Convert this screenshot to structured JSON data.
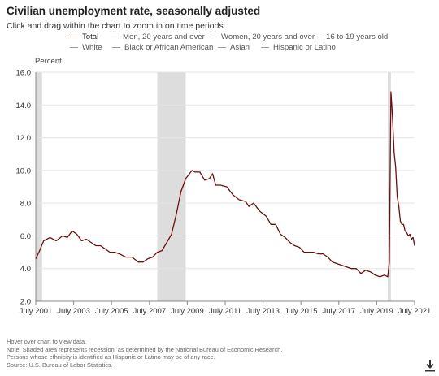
{
  "header": {
    "title": "Civilian unemployment rate, seasonally adjusted",
    "subtitle": "Click and drag within the chart to zoom in on time periods"
  },
  "legend": {
    "items": [
      {
        "label": "Total",
        "color": "#6b0f0f",
        "active": true
      },
      {
        "label": "Men, 20 years and over",
        "color": "#9a9a9a",
        "active": false
      },
      {
        "label": "Women, 20 years and over",
        "color": "#9a9a9a",
        "active": false
      },
      {
        "label": "16 to 19 years old",
        "color": "#9a9a9a",
        "active": false
      },
      {
        "label": "White",
        "color": "#9a9a9a",
        "active": false
      },
      {
        "label": "Black or African American",
        "color": "#9a9a9a",
        "active": false
      },
      {
        "label": "Asian",
        "color": "#9a9a9a",
        "active": false
      },
      {
        "label": "Hispanic or Latino",
        "color": "#9a9a9a",
        "active": false
      }
    ]
  },
  "chart_data": {
    "type": "line",
    "ylabel": "Percent",
    "xlabel": "",
    "ylim": [
      2.0,
      16.0
    ],
    "xlim": [
      "2001-07",
      "2021-07"
    ],
    "yticks": [
      "2.0",
      "4.0",
      "6.0",
      "8.0",
      "10.0",
      "12.0",
      "14.0",
      "16.0"
    ],
    "xticks": [
      {
        "label": "July 2001",
        "date": "2001-07"
      },
      {
        "label": "July 2003",
        "date": "2003-07"
      },
      {
        "label": "July 2005",
        "date": "2005-07"
      },
      {
        "label": "July 2007",
        "date": "2007-07"
      },
      {
        "label": "July 2009",
        "date": "2009-07"
      },
      {
        "label": "July 2011",
        "date": "2011-07"
      },
      {
        "label": "July 2013",
        "date": "2013-07"
      },
      {
        "label": "July 2015",
        "date": "2015-07"
      },
      {
        "label": "July 2017",
        "date": "2017-07"
      },
      {
        "label": "July 2019",
        "date": "2019-07"
      },
      {
        "label": "July 2021",
        "date": "2021-07"
      }
    ],
    "grid": true,
    "recessions": [
      {
        "start": "2001-03",
        "end": "2001-11"
      },
      {
        "start": "2007-12",
        "end": "2009-06"
      },
      {
        "start": "2020-02",
        "end": "2020-04"
      }
    ],
    "recession_color": "#dddddd",
    "series": [
      {
        "name": "Total",
        "color": "#6b0f0f",
        "points": [
          [
            "2001-07",
            4.6
          ],
          [
            "2001-09",
            5.0
          ],
          [
            "2001-12",
            5.7
          ],
          [
            "2002-04",
            5.9
          ],
          [
            "2002-08",
            5.7
          ],
          [
            "2002-12",
            6.0
          ],
          [
            "2003-03",
            5.9
          ],
          [
            "2003-06",
            6.3
          ],
          [
            "2003-09",
            6.1
          ],
          [
            "2003-12",
            5.7
          ],
          [
            "2004-03",
            5.8
          ],
          [
            "2004-06",
            5.6
          ],
          [
            "2004-09",
            5.4
          ],
          [
            "2004-12",
            5.4
          ],
          [
            "2005-03",
            5.2
          ],
          [
            "2005-06",
            5.0
          ],
          [
            "2005-09",
            5.0
          ],
          [
            "2005-12",
            4.9
          ],
          [
            "2006-04",
            4.7
          ],
          [
            "2006-08",
            4.7
          ],
          [
            "2006-12",
            4.4
          ],
          [
            "2007-03",
            4.4
          ],
          [
            "2007-06",
            4.6
          ],
          [
            "2007-09",
            4.7
          ],
          [
            "2007-12",
            5.0
          ],
          [
            "2008-03",
            5.1
          ],
          [
            "2008-06",
            5.6
          ],
          [
            "2008-09",
            6.1
          ],
          [
            "2008-12",
            7.3
          ],
          [
            "2009-03",
            8.7
          ],
          [
            "2009-06",
            9.5
          ],
          [
            "2009-10",
            10.0
          ],
          [
            "2009-12",
            9.9
          ],
          [
            "2010-03",
            9.9
          ],
          [
            "2010-06",
            9.4
          ],
          [
            "2010-09",
            9.5
          ],
          [
            "2010-11",
            9.8
          ],
          [
            "2011-01",
            9.1
          ],
          [
            "2011-04",
            9.1
          ],
          [
            "2011-08",
            9.0
          ],
          [
            "2011-12",
            8.5
          ],
          [
            "2012-04",
            8.2
          ],
          [
            "2012-08",
            8.1
          ],
          [
            "2012-10",
            7.8
          ],
          [
            "2013-01",
            8.0
          ],
          [
            "2013-05",
            7.5
          ],
          [
            "2013-09",
            7.2
          ],
          [
            "2013-12",
            6.7
          ],
          [
            "2014-03",
            6.7
          ],
          [
            "2014-06",
            6.1
          ],
          [
            "2014-09",
            5.9
          ],
          [
            "2014-12",
            5.6
          ],
          [
            "2015-03",
            5.4
          ],
          [
            "2015-06",
            5.3
          ],
          [
            "2015-09",
            5.0
          ],
          [
            "2015-12",
            5.0
          ],
          [
            "2016-03",
            5.0
          ],
          [
            "2016-06",
            4.9
          ],
          [
            "2016-09",
            4.9
          ],
          [
            "2016-12",
            4.7
          ],
          [
            "2017-03",
            4.4
          ],
          [
            "2017-06",
            4.3
          ],
          [
            "2017-09",
            4.2
          ],
          [
            "2017-12",
            4.1
          ],
          [
            "2018-03",
            4.0
          ],
          [
            "2018-06",
            4.0
          ],
          [
            "2018-09",
            3.7
          ],
          [
            "2018-12",
            3.9
          ],
          [
            "2019-03",
            3.8
          ],
          [
            "2019-06",
            3.6
          ],
          [
            "2019-09",
            3.5
          ],
          [
            "2019-12",
            3.6
          ],
          [
            "2020-02",
            3.5
          ],
          [
            "2020-03",
            4.4
          ],
          [
            "2020-04",
            14.8
          ],
          [
            "2020-05",
            13.3
          ],
          [
            "2020-06",
            11.1
          ],
          [
            "2020-07",
            10.2
          ],
          [
            "2020-08",
            8.4
          ],
          [
            "2020-09",
            7.8
          ],
          [
            "2020-10",
            6.9
          ],
          [
            "2020-11",
            6.7
          ],
          [
            "2020-12",
            6.7
          ],
          [
            "2021-01",
            6.3
          ],
          [
            "2021-02",
            6.2
          ],
          [
            "2021-03",
            6.0
          ],
          [
            "2021-04",
            6.1
          ],
          [
            "2021-05",
            5.8
          ],
          [
            "2021-06",
            5.9
          ],
          [
            "2021-07",
            5.4
          ]
        ]
      }
    ]
  },
  "notes": {
    "line1": "Hover over chart to view data.",
    "line2": "Note: Shaded area represents recession, as determined by the National Bureau of Economic Research.",
    "line3": "Persons whose ethnicity is identified as Hispanic or Latino may be of any race.",
    "line4": "Source: U.S. Bureau of Labor Statistics."
  }
}
